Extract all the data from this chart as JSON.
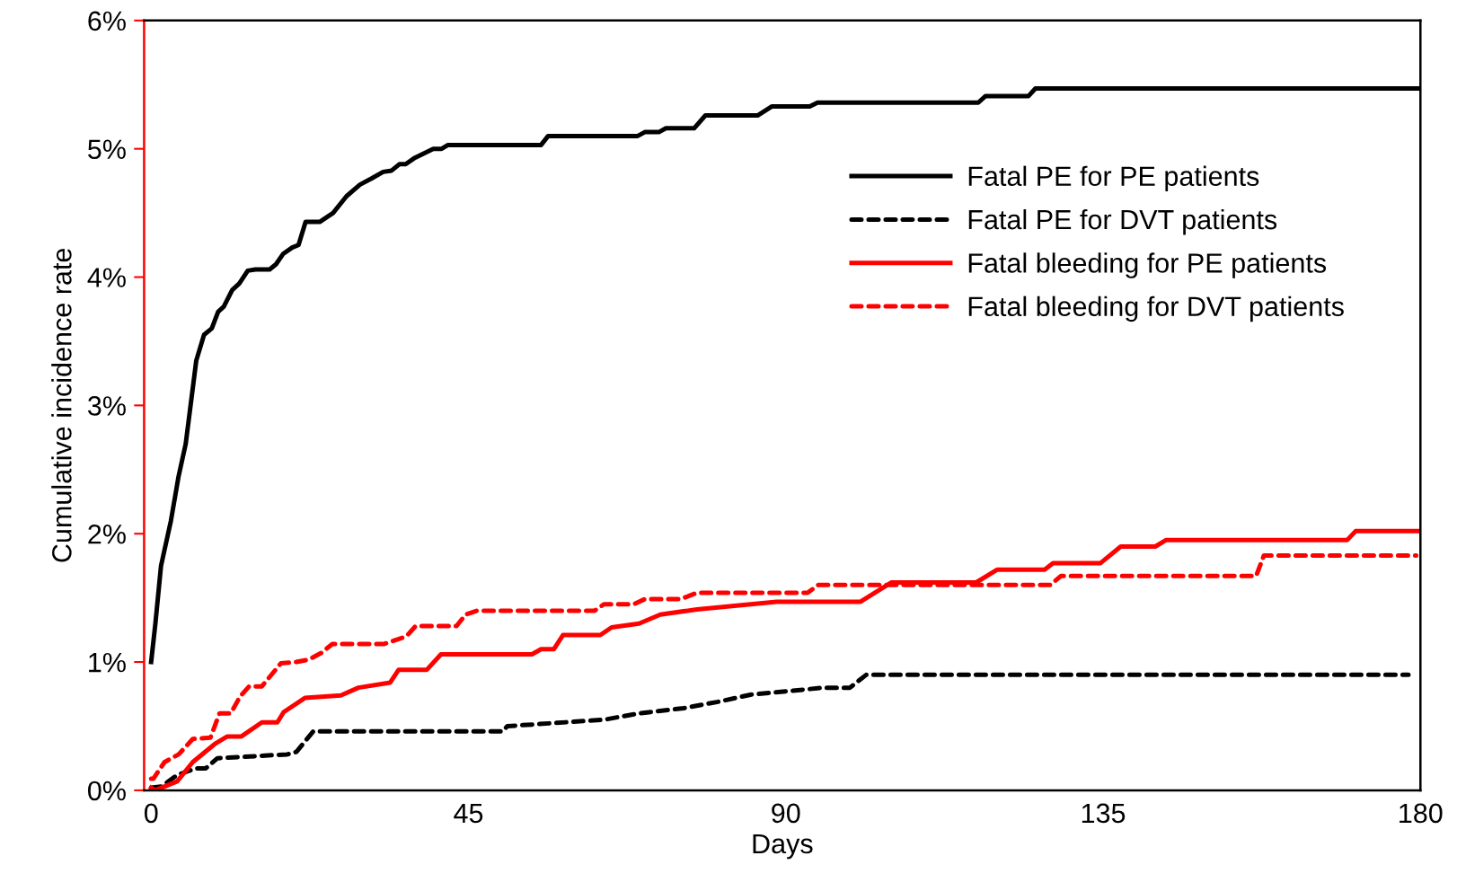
{
  "chart_data": {
    "type": "line",
    "xlabel": "Days",
    "ylabel": "Cumulative incidence rate",
    "xlim": [
      -1,
      180
    ],
    "xticks": [
      0,
      45,
      90,
      135,
      180
    ],
    "ylim": [
      0,
      6
    ],
    "yticks": [
      {
        "value": 0,
        "label": "0%"
      },
      {
        "value": 1,
        "label": "1%"
      },
      {
        "value": 2,
        "label": "2%"
      },
      {
        "value": 3,
        "label": "3%"
      },
      {
        "value": 4,
        "label": "4%"
      },
      {
        "value": 5,
        "label": "5%"
      },
      {
        "value": 6,
        "label": "6%"
      }
    ],
    "grid": false,
    "legend": "right",
    "series": [
      {
        "name": "Fatal PE for PE patients",
        "color": "#000000",
        "line_style": "solid",
        "x": [
          0,
          0.6,
          1.4,
          2.8,
          3.9,
          4.9,
          6.4,
          7.5,
          8.6,
          9.5,
          10.3,
          11.5,
          12.5,
          13.7,
          14.8,
          16.8,
          17.7,
          18.7,
          20,
          20.9,
          21.9,
          23.9,
          25.8,
          27.7,
          29.6,
          31.3,
          32.9,
          34.1,
          35.2,
          36.1,
          37.4,
          40,
          41.2,
          42.1,
          55.3,
          56.3,
          69,
          70,
          72,
          73,
          77,
          78.6,
          86,
          88,
          93.4,
          94.5,
          117.3,
          118.3,
          124.4,
          125.4,
          179.8
        ],
        "values": [
          1.0,
          1.3,
          1.75,
          2.1,
          2.45,
          2.7,
          3.35,
          3.55,
          3.6,
          3.73,
          3.77,
          3.9,
          3.95,
          4.05,
          4.06,
          4.06,
          4.1,
          4.18,
          4.23,
          4.25,
          4.43,
          4.43,
          4.5,
          4.63,
          4.72,
          4.77,
          4.82,
          4.83,
          4.88,
          4.88,
          4.93,
          5.0,
          5.0,
          5.03,
          5.03,
          5.1,
          5.1,
          5.13,
          5.13,
          5.16,
          5.16,
          5.26,
          5.26,
          5.33,
          5.33,
          5.36,
          5.36,
          5.41,
          5.41,
          5.47,
          5.47
        ]
      },
      {
        "name": "Fatal PE for DVT patients",
        "color": "#000000",
        "line_style": "dashed",
        "x": [
          0,
          1.5,
          3.7,
          6.3,
          7.7,
          9.4,
          19.3,
          20.6,
          23,
          49.9,
          50.5,
          64.2,
          69.2,
          75.5,
          80.4,
          85,
          95.4,
          99.1,
          101.4,
          178.3
        ],
        "values": [
          0.02,
          0.03,
          0.12,
          0.17,
          0.17,
          0.25,
          0.28,
          0.3,
          0.46,
          0.46,
          0.5,
          0.55,
          0.6,
          0.64,
          0.69,
          0.745,
          0.8,
          0.8,
          0.9,
          0.9
        ]
      },
      {
        "name": "Fatal bleeding for PE patients",
        "color": "#ff0000",
        "line_style": "solid",
        "x": [
          0,
          0.6,
          3.7,
          5.9,
          9.0,
          10.8,
          12.8,
          15.7,
          17.9,
          18.8,
          21.8,
          26.9,
          29.4,
          33.9,
          35.1,
          39.1,
          41.1,
          54,
          55.3,
          57.1,
          58.4,
          63.7,
          65.3,
          69.2,
          72.2,
          77.4,
          88.7,
          100.6,
          105,
          117,
          120,
          126.7,
          127.9,
          134.6,
          137.5,
          142.4,
          143.9,
          169.6,
          170.8,
          179.9
        ],
        "values": [
          0.02,
          0.0,
          0.07,
          0.22,
          0.36,
          0.42,
          0.42,
          0.53,
          0.53,
          0.61,
          0.72,
          0.74,
          0.8,
          0.84,
          0.94,
          0.94,
          1.06,
          1.06,
          1.1,
          1.1,
          1.21,
          1.21,
          1.27,
          1.3,
          1.37,
          1.41,
          1.47,
          1.47,
          1.62,
          1.62,
          1.72,
          1.72,
          1.77,
          1.77,
          1.9,
          1.9,
          1.95,
          1.95,
          2.02,
          2.02
        ]
      },
      {
        "name": "Fatal bleeding for DVT patients",
        "color": "#ff0000",
        "line_style": "dashed",
        "x": [
          0,
          0.3,
          1.9,
          3.9,
          5.9,
          8.4,
          9.7,
          11.3,
          12.6,
          13.9,
          15.7,
          18.4,
          20.6,
          22.4,
          24.1,
          25.7,
          33.0,
          36.2,
          37.5,
          43.3,
          44.6,
          46.2,
          62.9,
          64.2,
          68.4,
          70,
          75.1,
          77.4,
          93.1,
          94.6,
          127.5,
          129,
          156.7,
          157.8,
          179.4
        ],
        "values": [
          0.09,
          0.09,
          0.22,
          0.28,
          0.4,
          0.41,
          0.6,
          0.6,
          0.73,
          0.81,
          0.81,
          0.99,
          1.0,
          1.02,
          1.07,
          1.14,
          1.14,
          1.2,
          1.28,
          1.28,
          1.37,
          1.4,
          1.4,
          1.45,
          1.45,
          1.49,
          1.49,
          1.54,
          1.54,
          1.6,
          1.6,
          1.67,
          1.67,
          1.83,
          1.83
        ]
      }
    ]
  }
}
